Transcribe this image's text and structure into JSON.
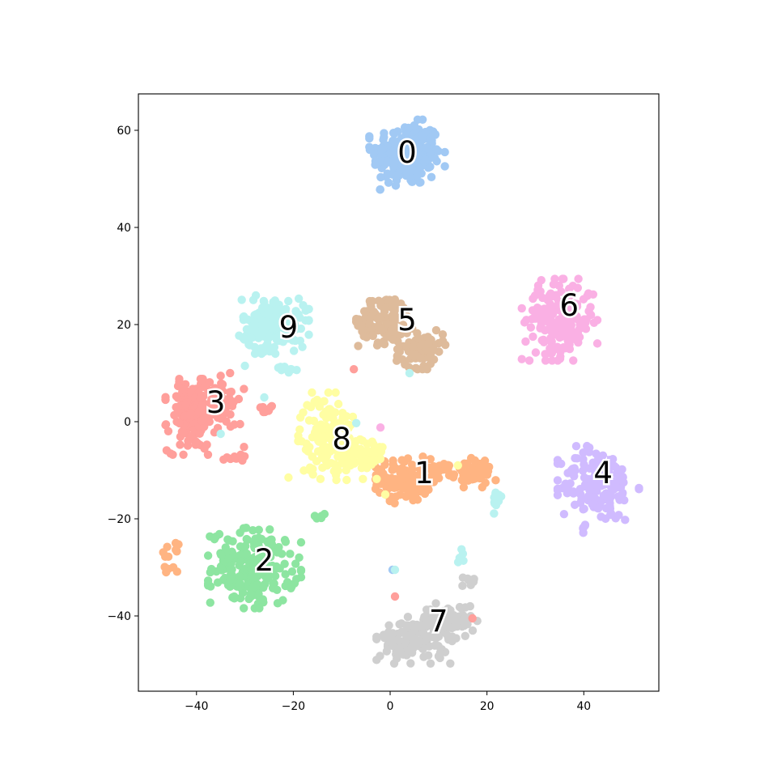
{
  "chart_data": {
    "type": "scatter",
    "title": "",
    "xlabel": "",
    "ylabel": "",
    "xlim": [
      -52,
      55.5
    ],
    "ylim": [
      -55.5,
      67.5
    ],
    "x_ticks": [
      -40,
      -20,
      0,
      20,
      40
    ],
    "y_ticks": [
      -40,
      -20,
      0,
      20,
      40,
      60
    ],
    "x_tick_labels": [
      "−40",
      "−20",
      "0",
      "20",
      "40"
    ],
    "y_tick_labels": [
      "−40",
      "−20",
      "0",
      "20",
      "40",
      "60"
    ],
    "grid": false,
    "legend": "none",
    "clusters": [
      {
        "label": "0",
        "color": "#a1c9f4",
        "label_pos": [
          3.5,
          55.5
        ],
        "blobs": [
          {
            "cx": 3.5,
            "cy": 55,
            "rx": 6.5,
            "ry": 6,
            "n": 240
          }
        ]
      },
      {
        "label": "1",
        "color": "#ffb482",
        "label_pos": [
          7,
          -10.5
        ],
        "blobs": [
          {
            "cx": 3,
            "cy": -12,
            "rx": 5,
            "ry": 4,
            "n": 120
          },
          {
            "cx": 10,
            "cy": -10.5,
            "rx": 3,
            "ry": 2,
            "n": 20
          },
          {
            "cx": 17,
            "cy": -10.5,
            "rx": 4,
            "ry": 2.5,
            "n": 55
          },
          {
            "cx": -45.5,
            "cy": -28,
            "rx": 1.5,
            "ry": 2.5,
            "n": 14
          }
        ]
      },
      {
        "label": "2",
        "color": "#8de5a1",
        "label_pos": [
          -26,
          -28.5
        ],
        "blobs": [
          {
            "cx": -28,
            "cy": -30,
            "rx": 8,
            "ry": 7,
            "n": 210
          },
          {
            "cx": -14,
            "cy": -19.5,
            "rx": 1.5,
            "ry": 0.8,
            "n": 6
          }
        ]
      },
      {
        "label": "3",
        "color": "#ff9f9b",
        "label_pos": [
          -36,
          4
        ],
        "blobs": [
          {
            "cx": -41,
            "cy": 1,
            "rx": 4.5,
            "ry": 6.5,
            "n": 170
          },
          {
            "cx": -35,
            "cy": 5,
            "rx": 4,
            "ry": 5,
            "n": 50
          },
          {
            "cx": -32,
            "cy": -7,
            "rx": 2,
            "ry": 1.5,
            "n": 10
          },
          {
            "cx": -26,
            "cy": 3,
            "rx": 1.3,
            "ry": 1.3,
            "n": 8
          }
        ]
      },
      {
        "label": "4",
        "color": "#d0bbff",
        "label_pos": [
          44,
          -10.5
        ],
        "blobs": [
          {
            "cx": 43,
            "cy": -13,
            "rx": 7,
            "ry": 7,
            "n": 160
          },
          {
            "cx": 40,
            "cy": -22,
            "rx": 1,
            "ry": 1,
            "n": 4
          }
        ]
      },
      {
        "label": "5",
        "color": "#debb9b",
        "label_pos": [
          3.5,
          21
        ],
        "blobs": [
          {
            "cx": -1,
            "cy": 21,
            "rx": 5,
            "ry": 4.5,
            "n": 110
          },
          {
            "cx": 6,
            "cy": 15,
            "rx": 4.5,
            "ry": 3.5,
            "n": 90
          }
        ]
      },
      {
        "label": "6",
        "color": "#fab0e4",
        "label_pos": [
          37,
          24
        ],
        "blobs": [
          {
            "cx": 35,
            "cy": 21,
            "rx": 6.5,
            "ry": 7,
            "n": 200
          }
        ]
      },
      {
        "label": "7",
        "color": "#cfcfcf",
        "label_pos": [
          10,
          -41
        ],
        "blobs": [
          {
            "cx": 5,
            "cy": -45,
            "rx": 6.5,
            "ry": 4,
            "n": 130
          },
          {
            "cx": 12,
            "cy": -41,
            "rx": 5,
            "ry": 3,
            "n": 70
          },
          {
            "cx": 16,
            "cy": -33,
            "rx": 1.8,
            "ry": 1,
            "n": 8
          }
        ]
      },
      {
        "label": "8",
        "color": "#fffea3",
        "label_pos": [
          -10,
          -3.5
        ],
        "blobs": [
          {
            "cx": -13,
            "cy": -3,
            "rx": 5,
            "ry": 7.5,
            "n": 140
          },
          {
            "cx": -6,
            "cy": -7,
            "rx": 4.5,
            "ry": 4,
            "n": 70
          }
        ]
      },
      {
        "label": "9",
        "color": "#b9f2f0",
        "label_pos": [
          -21,
          19.5
        ],
        "blobs": [
          {
            "cx": -24,
            "cy": 20,
            "rx": 6,
            "ry": 5,
            "n": 170
          },
          {
            "cx": -22,
            "cy": 11,
            "rx": 2.5,
            "ry": 1,
            "n": 10
          },
          {
            "cx": 22,
            "cy": -16.5,
            "rx": 1.5,
            "ry": 2,
            "n": 14
          },
          {
            "cx": 15,
            "cy": -27.5,
            "rx": 1,
            "ry": 1.5,
            "n": 6
          }
        ]
      }
    ],
    "stray_points": [
      {
        "x": -7.5,
        "y": 10.8,
        "color": "#ff9f9b"
      },
      {
        "x": 4,
        "y": 10,
        "color": "#b9f2f0"
      },
      {
        "x": -26,
        "y": 5,
        "color": "#b9f2f0"
      },
      {
        "x": -35,
        "y": -2.5,
        "color": "#b9f2f0"
      },
      {
        "x": -30,
        "y": 11.5,
        "color": "#b9f2f0"
      },
      {
        "x": -31,
        "y": -0.5,
        "color": "#ff9f9b"
      },
      {
        "x": -2,
        "y": -1.2,
        "color": "#fab0e4"
      },
      {
        "x": -7,
        "y": -0.3,
        "color": "#b9f2f0"
      },
      {
        "x": -21,
        "y": -11.5,
        "color": "#fffea3"
      },
      {
        "x": -1,
        "y": -15,
        "color": "#fffea3"
      },
      {
        "x": 0.5,
        "y": -30.5,
        "color": "#a1c9f4"
      },
      {
        "x": 1,
        "y": -30.5,
        "color": "#b9f2f0"
      },
      {
        "x": 1,
        "y": -36,
        "color": "#ff9f9b"
      },
      {
        "x": 17,
        "y": -40.5,
        "color": "#ff9f9b"
      },
      {
        "x": 14,
        "y": -9,
        "color": "#fffea3"
      }
    ]
  }
}
